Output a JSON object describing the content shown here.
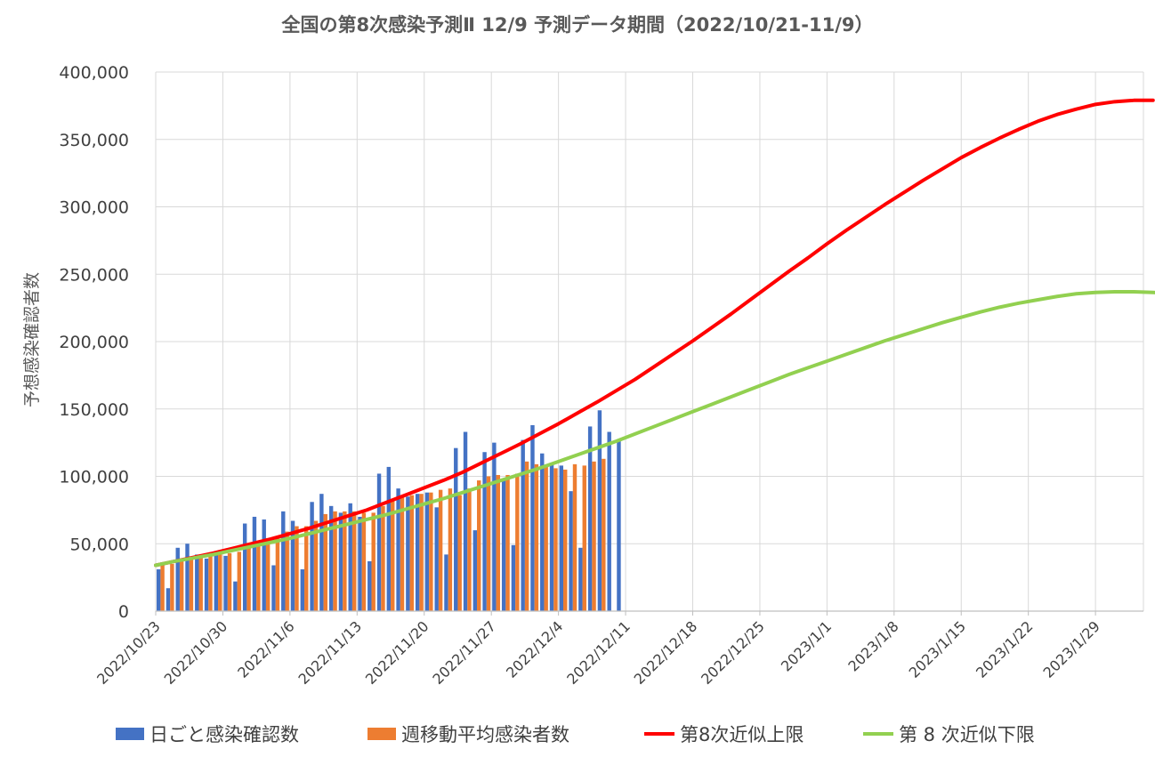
{
  "chart_data": {
    "type": "bar",
    "title": "全国の第8次感染予測Ⅱ 12/9 予測データ期間（2022/10/21-11/9）",
    "ylabel": "予想感染確認者数",
    "xlabel": "",
    "ylim": [
      0,
      400000
    ],
    "y_ticks": [
      0,
      50000,
      100000,
      150000,
      200000,
      250000,
      300000,
      350000,
      400000
    ],
    "y_tick_labels": [
      "0",
      "50,000",
      "100,000",
      "150,000",
      "200,000",
      "250,000",
      "300,000",
      "350,000",
      "400,000"
    ],
    "x_start": "2022/10/23",
    "x_end": "2023/2/3",
    "x_tick_labels": [
      "2022/10/23",
      "2022/10/30",
      "2022/11/6",
      "2022/11/13",
      "2022/11/20",
      "2022/11/27",
      "2022/12/4",
      "2022/12/11",
      "2022/12/18",
      "2022/12/25",
      "2023/1/1",
      "2023/1/8",
      "2023/1/15",
      "2023/1/22",
      "2023/1/29"
    ],
    "grid": true,
    "legend_position": "bottom",
    "series": [
      {
        "name": "日ごと感染確認数",
        "kind": "bar",
        "color": "#4472c4",
        "values": [
          31000,
          17000,
          47000,
          50000,
          42000,
          39000,
          43000,
          41000,
          22000,
          65000,
          70000,
          68000,
          34000,
          74000,
          67000,
          31000,
          81000,
          87000,
          78000,
          73000,
          80000,
          70000,
          37000,
          102000,
          107000,
          91000,
          85000,
          87000,
          88000,
          77000,
          42000,
          121000,
          133000,
          60000,
          118000,
          125000,
          98000,
          49000,
          127000,
          138000,
          117000,
          110000,
          108000,
          89000,
          47000,
          137000,
          149000,
          133000,
          127000
        ]
      },
      {
        "name": "週移動平均感染者数",
        "kind": "bar",
        "color": "#ed7d31",
        "values": [
          34000,
          35000,
          37000,
          39000,
          40000,
          41000,
          42000,
          43000,
          44000,
          47000,
          51000,
          54000,
          55000,
          59000,
          63000,
          63000,
          67000,
          72000,
          74000,
          74000,
          74000,
          73000,
          73000,
          78000,
          83000,
          86000,
          86000,
          87000,
          88000,
          90000,
          91000,
          86000,
          91000,
          97000,
          100000,
          101000,
          101000,
          102000,
          111000,
          109000,
          107000,
          106000,
          105000,
          109000,
          108000,
          111000,
          113000
        ]
      },
      {
        "name": "第8次近似上限",
        "kind": "line",
        "color": "#ff0000",
        "values": [
          34000,
          37000,
          40000,
          43000,
          46500,
          50000,
          53500,
          57500,
          61500,
          66000,
          70500,
          75000,
          80500,
          86000,
          91500,
          97000,
          103000,
          110000,
          117000,
          124000,
          131500,
          139000,
          147000,
          155000,
          163500,
          172000,
          181500,
          191000,
          200500,
          210500,
          220500,
          231000,
          241500,
          252000,
          262000,
          272500,
          282500,
          292000,
          301500,
          310500,
          319500,
          328000,
          336500,
          344000,
          351000,
          357500,
          363500,
          368500,
          372500,
          376000,
          378000,
          379000,
          379000
        ]
      },
      {
        "name": "第 8 次近似下限",
        "kind": "line",
        "color": "#92d050",
        "values": [
          34000,
          37000,
          39500,
          42000,
          45000,
          48000,
          51000,
          54000,
          57500,
          61000,
          64500,
          68000,
          71500,
          75500,
          79500,
          83500,
          88000,
          92500,
          97000,
          101500,
          106000,
          111000,
          116000,
          121000,
          126000,
          131500,
          137000,
          142500,
          148000,
          153500,
          159000,
          164500,
          170000,
          175500,
          180500,
          185500,
          190500,
          195500,
          200500,
          205000,
          209500,
          214000,
          218000,
          222000,
          225500,
          228500,
          231000,
          233500,
          235500,
          236500,
          237000,
          237000,
          236500,
          235500,
          234000,
          232000
        ]
      }
    ]
  }
}
